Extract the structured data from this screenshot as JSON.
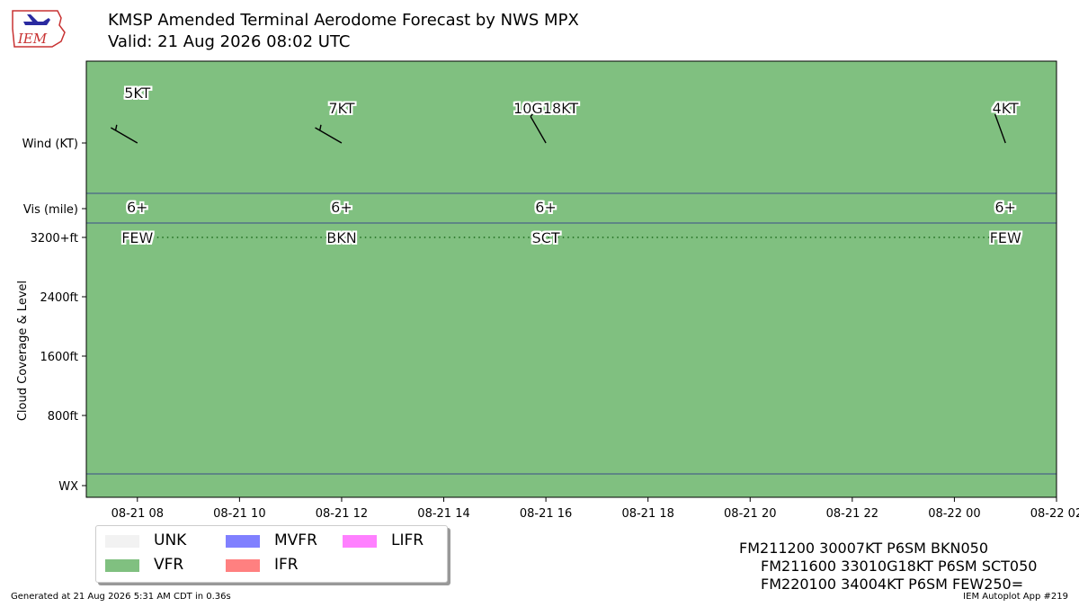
{
  "logo": {
    "text": "IEM"
  },
  "header": {
    "title": "KMSP Amended Terminal Aerodome Forecast by NWS MPX",
    "subtitle": "Valid: 21 Aug 2026 08:02 UTC"
  },
  "colors": {
    "UNK": "#f2f2f2",
    "VFR": "#80c080",
    "MVFR": "#8080ff",
    "IFR": "#ff8080",
    "LIFR": "#ff80ff",
    "separator": "#3b4d8a"
  },
  "chart_data": {
    "type": "taf-timeline",
    "xlim": [
      "08-21 07",
      "08-22 02"
    ],
    "x_tick_labels": [
      "08-21 08",
      "08-21 10",
      "08-21 12",
      "08-21 14",
      "08-21 16",
      "08-21 18",
      "08-21 20",
      "08-21 22",
      "08-22 00",
      "08-22 02"
    ],
    "x_tick_hours": [
      1,
      3,
      5,
      7,
      9,
      11,
      13,
      15,
      17,
      19
    ],
    "y_row_labels": {
      "wind": "Wind (KT)",
      "vis": "Vis (mile)",
      "wx": "WX"
    },
    "y_cloud_ticks": [
      {
        "label": "3200+ft",
        "value": 3200
      },
      {
        "label": "2400ft",
        "value": 2400
      },
      {
        "label": "1600ft",
        "value": 1600
      },
      {
        "label": "800ft",
        "value": 800
      }
    ],
    "y_axis_label": "Cloud Coverage & Level",
    "background_category": "VFR",
    "periods": [
      {
        "time": "08-21 08",
        "hour": 1,
        "wind_label": "5KT",
        "wind_dir": 300,
        "wind_speed": 5,
        "vis_label": "6+",
        "cloud_label": "FEW",
        "cloud_level": 3200
      },
      {
        "time": "08-21 12",
        "hour": 5,
        "wind_label": "7KT",
        "wind_dir": 300,
        "wind_speed": 7,
        "vis_label": "6+",
        "cloud_label": "BKN",
        "cloud_level": 3200
      },
      {
        "time": "08-21 16",
        "hour": 9,
        "wind_label": "10G18KT",
        "wind_dir": 330,
        "wind_speed": 10,
        "vis_label": "6+",
        "cloud_label": "SCT",
        "cloud_level": 3200
      },
      {
        "time": "08-22 01",
        "hour": 18,
        "wind_label": "4KT",
        "wind_dir": 340,
        "wind_speed": 4,
        "vis_label": "6+",
        "cloud_label": "FEW",
        "cloud_level": 3200
      }
    ]
  },
  "legend": [
    {
      "label": "UNK",
      "color": "#f2f2f2"
    },
    {
      "label": "VFR",
      "color": "#80c080"
    },
    {
      "label": "MVFR",
      "color": "#8080ff"
    },
    {
      "label": "IFR",
      "color": "#ff8080"
    },
    {
      "label": "LIFR",
      "color": "#ff80ff"
    }
  ],
  "raw_taf": [
    "FM211200 30007KT P6SM BKN050",
    "FM211600 33010G18KT P6SM SCT050",
    "FM220100 34004KT P6SM FEW250="
  ],
  "footer": {
    "left": "Generated at 21 Aug 2026 5:31 AM CDT in 0.36s",
    "right": "IEM Autoplot App #219"
  }
}
